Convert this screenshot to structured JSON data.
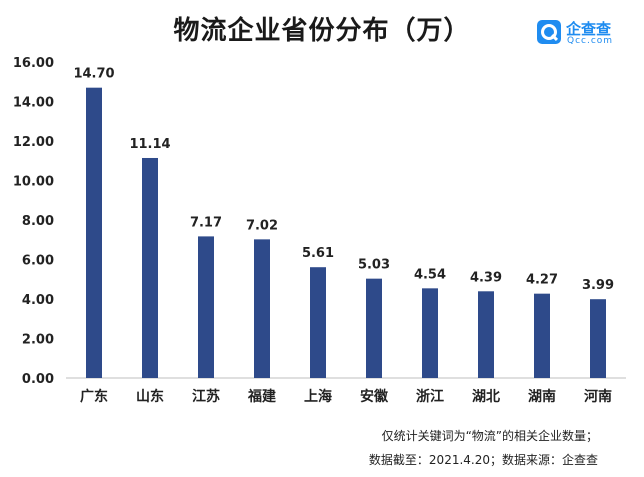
{
  "title": "物流企业省份分布（万）",
  "logo": {
    "name": "企查查",
    "sub": "Qcc.com",
    "icon": "magnifier-icon",
    "color": "#1f8cf0"
  },
  "notes": [
    "仅统计关键词为“物流”的相关企业数量；",
    "数据截至：2021.4.20；数据来源：企查查"
  ],
  "chart_data": {
    "type": "bar",
    "categories": [
      "广东",
      "山东",
      "江苏",
      "福建",
      "上海",
      "安徽",
      "浙江",
      "湖北",
      "湖南",
      "河南"
    ],
    "values": [
      14.7,
      11.14,
      7.17,
      7.02,
      5.61,
      5.03,
      4.54,
      4.39,
      4.27,
      3.99
    ],
    "value_labels": [
      "14.70",
      "11.14",
      "7.17",
      "7.02",
      "5.61",
      "5.03",
      "4.54",
      "4.39",
      "4.27",
      "3.99"
    ],
    "yticks": [
      "0.00",
      "2.00",
      "4.00",
      "6.00",
      "8.00",
      "10.00",
      "12.00",
      "14.00",
      "16.00"
    ],
    "ylim": [
      0,
      16
    ],
    "grid": false,
    "bar_color": "#2e4a8a"
  }
}
